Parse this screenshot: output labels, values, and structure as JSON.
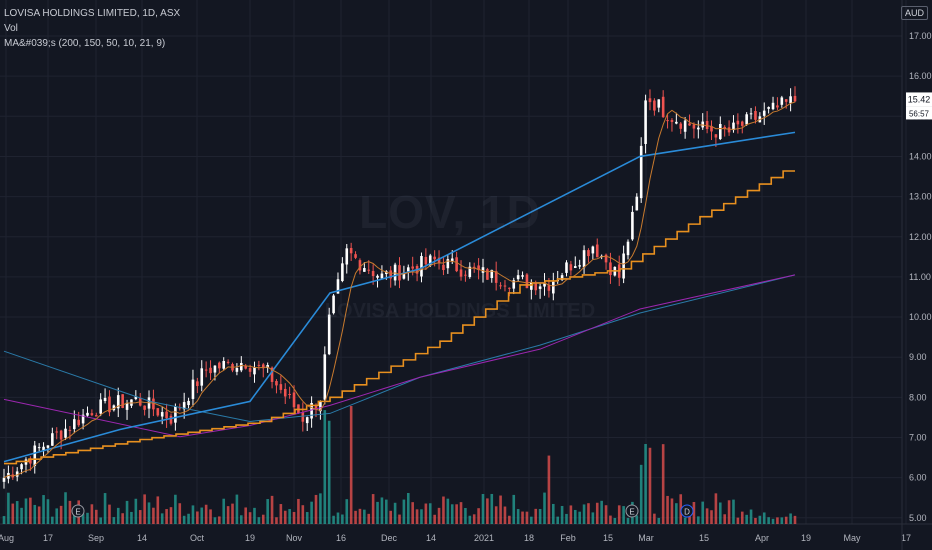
{
  "header": {
    "symbol_line": "LOVISA HOLDINGS LIMITED, 1D, ASX",
    "vol_label": "Vol",
    "ma_label": "MA&#039;s (200, 150, 50, 10, 21, 9)",
    "currency": "AUD"
  },
  "watermark": {
    "symbol": "LOV, 1D",
    "name": "LOVISA HOLDINGS LIMITED"
  },
  "price_labels": {
    "last": "15.42",
    "countdown": "56:57"
  },
  "colors": {
    "background": "#131722",
    "grid": "#1f2330",
    "up": "#ffffff",
    "down": "#ef5350",
    "vol_up": "#26a69a",
    "vol_down": "#ef5350",
    "ma200": "#2a7aa8",
    "ma150": "#9c27b0",
    "ma50": "#e8901f",
    "ma10": "#c87a2e",
    "ma21": "#2a8bd8",
    "ma9": "#d28c2a"
  },
  "chart_data": {
    "type": "candlestick",
    "y_axis": {
      "ticks": [
        "17.00",
        "16.00",
        "15.00",
        "14.00",
        "13.00",
        "12.00",
        "11.00",
        "10.00",
        "9.00",
        "8.00",
        "7.00",
        "6.00",
        "5.00"
      ],
      "ylim": [
        4.75,
        17.3
      ]
    },
    "x_axis": {
      "ticks": [
        "Aug",
        "17",
        "Sep",
        "14",
        "Oct",
        "19",
        "Nov",
        "16",
        "Dec",
        "14",
        "2021",
        "18",
        "Feb",
        "15",
        "Mar",
        "15",
        "Apr",
        "19",
        "May",
        "17"
      ]
    },
    "series": [
      {
        "name": "Vol",
        "type": "volume"
      },
      {
        "name": "MA 200",
        "values": [
          9.15,
          7.9,
          7.4,
          7.6,
          8.5,
          9.3,
          10.1,
          11.05
        ]
      },
      {
        "name": "MA 150",
        "values": [
          7.95,
          7.02,
          7.3,
          7.8,
          8.5,
          9.2,
          10.2,
          11.05
        ]
      },
      {
        "name": "MA 50",
        "values": [
          6.35,
          6.95,
          7.4,
          8.0,
          9.4,
          10.8,
          11.2,
          12.5,
          13.8
        ]
      },
      {
        "name": "MA 21",
        "values": [
          6.4,
          7.2,
          7.9,
          10.6,
          11.2,
          14.0,
          14.6
        ]
      }
    ],
    "events": [
      "E",
      "E",
      "D"
    ],
    "last_price": 15.42
  }
}
